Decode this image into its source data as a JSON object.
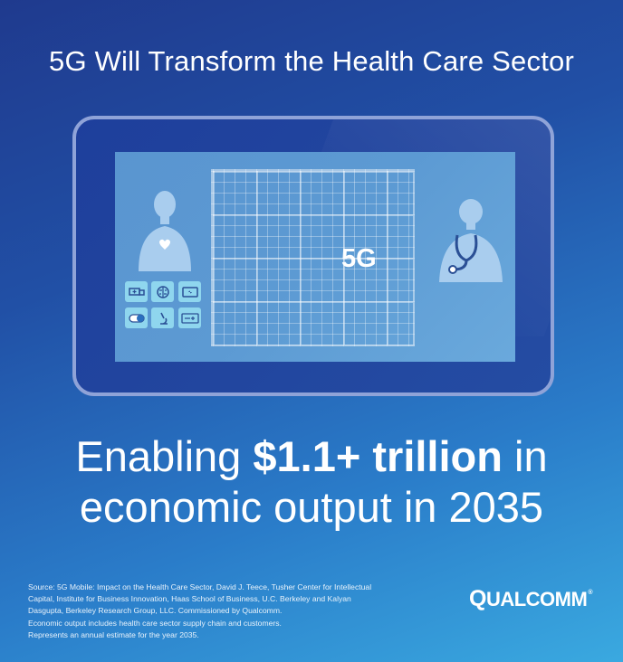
{
  "title": "5G Will Transform the Health Care Sector",
  "tablet": {
    "screen_label": "5G",
    "icon_names": [
      "ambulance-icon",
      "brain-icon",
      "monitor-icon",
      "pill-icon",
      "microscope-icon",
      "insurance-card-icon"
    ]
  },
  "headline": {
    "prefix": "Enabling ",
    "highlight": "$1.1+ trillion",
    "suffix": " in",
    "line2": "economic output in 2035"
  },
  "source": {
    "lines": [
      "Source: 5G Mobile: Impact on the Health Care Sector, David J. Teece, Tusher Center for Intellectual",
      "Capital, Institute for Business Innovation, Haas School of Business, U.C. Berkeley and Kalyan",
      "Dasgupta, Berkeley Research Group, LLC. Commissioned by Qualcomm.",
      "Economic output includes health care sector supply chain and customers.",
      "Represents an annual estimate for the year 2035."
    ]
  },
  "logo": {
    "first_letter": "Q",
    "rest": "UALCOMM",
    "mark": "®"
  },
  "colors": {
    "background_top": "#1f3a8e",
    "background_bottom": "#3aa9e0",
    "tablet_frame": "#8fa3d8",
    "screen": "#5c9ad3",
    "icon_tile": "#8fd6ee",
    "text": "#ffffff"
  }
}
